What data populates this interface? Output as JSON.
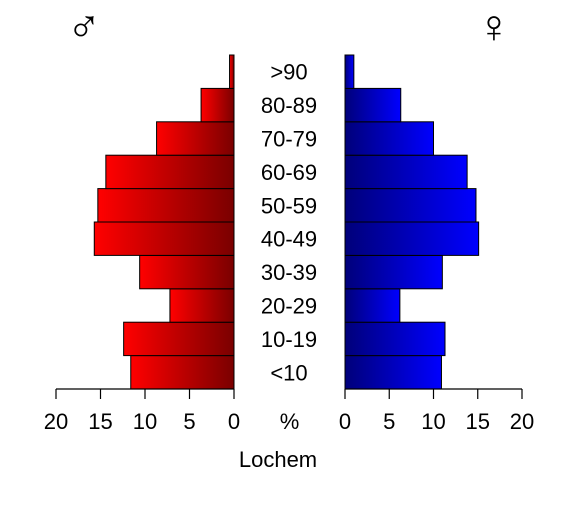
{
  "chart_data": {
    "type": "bar",
    "orientation": "horizontal-population-pyramid",
    "title": "",
    "xlabel": "Lochem",
    "unit_label": "%",
    "categories": [
      "<10",
      "10-19",
      "20-29",
      "30-39",
      "40-49",
      "50-59",
      "60-69",
      "70-79",
      "80-89",
      ">90"
    ],
    "series": [
      {
        "name": "♂",
        "side": "left",
        "color_light": "#ff0000",
        "color_dark": "#7a0000",
        "values": [
          11.6,
          12.4,
          7.2,
          10.6,
          15.7,
          15.3,
          14.4,
          8.7,
          3.7,
          0.5
        ]
      },
      {
        "name": "♀",
        "side": "right",
        "color_light": "#0000ff",
        "color_dark": "#00007a",
        "values": [
          10.9,
          11.3,
          6.2,
          11.0,
          15.1,
          14.8,
          13.8,
          10.0,
          6.3,
          1.0
        ]
      }
    ],
    "xlim": [
      0,
      20
    ],
    "ticks": [
      0,
      5,
      10,
      15,
      20
    ],
    "tick_labels": [
      "0",
      "5",
      "10",
      "15",
      "20"
    ],
    "grid": false,
    "legend": "none"
  }
}
